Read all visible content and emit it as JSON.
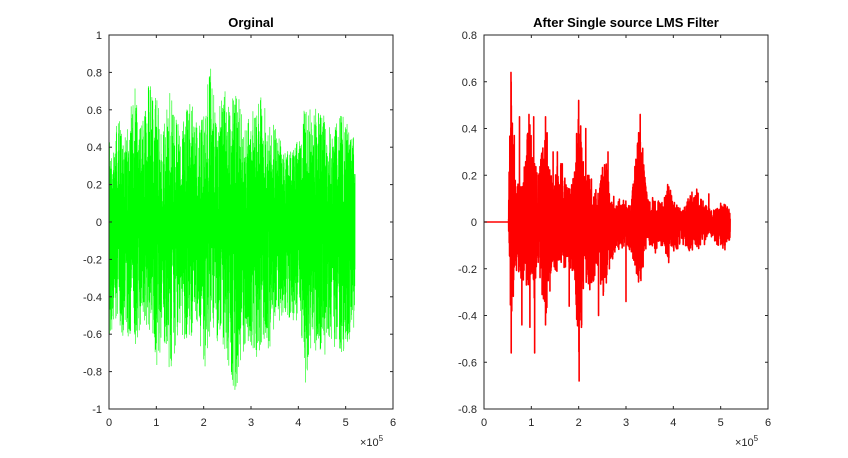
{
  "figure": {
    "background": "#ffffff"
  },
  "chart_data": [
    {
      "type": "line",
      "title": "Orginal",
      "xlabel": "",
      "ylabel": "",
      "xlim": [
        0,
        600000
      ],
      "ylim": [
        -1,
        1
      ],
      "x_ticks": [
        0,
        100000,
        200000,
        300000,
        400000,
        500000,
        600000
      ],
      "x_tick_labels": [
        "0",
        "1",
        "2",
        "3",
        "4",
        "5",
        "6"
      ],
      "x_exponent_label": "×10",
      "x_exponent_power": "5",
      "y_ticks": [
        -1,
        -0.8,
        -0.6,
        -0.4,
        -0.2,
        0,
        0.2,
        0.4,
        0.6,
        0.8,
        1
      ],
      "y_tick_labels": [
        "-1",
        "-0.8",
        "-0.6",
        "-0.4",
        "-0.2",
        "0",
        "0.2",
        "0.4",
        "0.6",
        "0.8",
        "1"
      ],
      "grid": false,
      "legend": "none",
      "series": [
        {
          "color": "#00ff00",
          "style": "dense oscillating audio signal",
          "x_range": [
            0,
            520000
          ],
          "envelope_positive": [
            [
              0,
              0.45
            ],
            [
              10000,
              0.4
            ],
            [
              20000,
              0.62
            ],
            [
              30000,
              0.42
            ],
            [
              45000,
              0.6
            ],
            [
              55000,
              0.72
            ],
            [
              70000,
              0.52
            ],
            [
              85000,
              0.75
            ],
            [
              100000,
              0.72
            ],
            [
              115000,
              0.5
            ],
            [
              130000,
              0.72
            ],
            [
              150000,
              0.5
            ],
            [
              170000,
              0.67
            ],
            [
              190000,
              0.55
            ],
            [
              205000,
              0.66
            ],
            [
              215000,
              0.88
            ],
            [
              230000,
              0.6
            ],
            [
              245000,
              0.7
            ],
            [
              260000,
              0.66
            ],
            [
              275000,
              0.7
            ],
            [
              290000,
              0.52
            ],
            [
              305000,
              0.62
            ],
            [
              320000,
              0.68
            ],
            [
              340000,
              0.54
            ],
            [
              355000,
              0.5
            ],
            [
              370000,
              0.36
            ],
            [
              385000,
              0.42
            ],
            [
              400000,
              0.44
            ],
            [
              415000,
              0.66
            ],
            [
              430000,
              0.62
            ],
            [
              445000,
              0.6
            ],
            [
              460000,
              0.55
            ],
            [
              475000,
              0.5
            ],
            [
              490000,
              0.58
            ],
            [
              505000,
              0.52
            ],
            [
              520000,
              0.5
            ]
          ],
          "envelope_negative": [
            [
              0,
              -0.62
            ],
            [
              10000,
              -0.55
            ],
            [
              20000,
              -0.48
            ],
            [
              30000,
              -0.72
            ],
            [
              45000,
              -0.62
            ],
            [
              55000,
              -0.66
            ],
            [
              70000,
              -0.55
            ],
            [
              85000,
              -0.6
            ],
            [
              100000,
              -0.78
            ],
            [
              115000,
              -0.62
            ],
            [
              130000,
              -0.82
            ],
            [
              150000,
              -0.56
            ],
            [
              170000,
              -0.78
            ],
            [
              190000,
              -0.62
            ],
            [
              205000,
              -0.8
            ],
            [
              215000,
              -0.56
            ],
            [
              230000,
              -0.65
            ],
            [
              245000,
              -0.72
            ],
            [
              260000,
              -0.93
            ],
            [
              275000,
              -0.86
            ],
            [
              290000,
              -0.66
            ],
            [
              305000,
              -0.74
            ],
            [
              320000,
              -0.7
            ],
            [
              340000,
              -0.68
            ],
            [
              355000,
              -0.56
            ],
            [
              370000,
              -0.48
            ],
            [
              385000,
              -0.54
            ],
            [
              400000,
              -0.52
            ],
            [
              415000,
              -0.86
            ],
            [
              430000,
              -0.62
            ],
            [
              445000,
              -0.82
            ],
            [
              460000,
              -0.7
            ],
            [
              475000,
              -0.66
            ],
            [
              490000,
              -0.74
            ],
            [
              505000,
              -0.65
            ],
            [
              520000,
              -0.55
            ]
          ]
        }
      ]
    },
    {
      "type": "line",
      "title": "After Single source LMS Filter",
      "xlabel": "",
      "ylabel": "",
      "xlim": [
        0,
        600000
      ],
      "ylim": [
        -0.8,
        0.8
      ],
      "x_ticks": [
        0,
        100000,
        200000,
        300000,
        400000,
        500000,
        600000
      ],
      "x_tick_labels": [
        "0",
        "1",
        "2",
        "3",
        "4",
        "5",
        "6"
      ],
      "x_exponent_label": "×10",
      "x_exponent_power": "5",
      "y_ticks": [
        -0.8,
        -0.6,
        -0.4,
        -0.2,
        0,
        0.2,
        0.4,
        0.6,
        0.8
      ],
      "y_tick_labels": [
        "-0.8",
        "-0.6",
        "-0.4",
        "-0.2",
        "0",
        "0.2",
        "0.4",
        "0.6",
        "0.8"
      ],
      "grid": false,
      "legend": "none",
      "series": [
        {
          "color": "#ff0000",
          "style": "filtered signal, flat zero until ~0.5e5 then bursts",
          "flat_until": 52000,
          "x_range": [
            52000,
            520000
          ],
          "envelope_positive": [
            [
              52000,
              0.12
            ],
            [
              57000,
              0.64
            ],
            [
              65000,
              0.18
            ],
            [
              80000,
              0.15
            ],
            [
              95000,
              0.46
            ],
            [
              105000,
              0.3
            ],
            [
              115000,
              0.2
            ],
            [
              130000,
              0.45
            ],
            [
              145000,
              0.15
            ],
            [
              160000,
              0.32
            ],
            [
              175000,
              0.15
            ],
            [
              190000,
              0.2
            ],
            [
              200000,
              0.52
            ],
            [
              212000,
              0.22
            ],
            [
              225000,
              0.2
            ],
            [
              240000,
              0.12
            ],
            [
              255000,
              0.3
            ],
            [
              265000,
              0.2
            ],
            [
              280000,
              0.1
            ],
            [
              295000,
              0.1
            ],
            [
              310000,
              0.08
            ],
            [
              330000,
              0.46
            ],
            [
              345000,
              0.1
            ],
            [
              360000,
              0.12
            ],
            [
              375000,
              0.08
            ],
            [
              390000,
              0.16
            ],
            [
              405000,
              0.08
            ],
            [
              420000,
              0.05
            ],
            [
              435000,
              0.12
            ],
            [
              450000,
              0.15
            ],
            [
              465000,
              0.08
            ],
            [
              480000,
              0.05
            ],
            [
              495000,
              0.06
            ],
            [
              510000,
              0.08
            ],
            [
              520000,
              0.05
            ]
          ],
          "envelope_negative": [
            [
              52000,
              -0.12
            ],
            [
              57000,
              -0.56
            ],
            [
              65000,
              -0.2
            ],
            [
              80000,
              -0.26
            ],
            [
              95000,
              -0.28
            ],
            [
              105000,
              -0.34
            ],
            [
              115000,
              -0.22
            ],
            [
              130000,
              -0.45
            ],
            [
              145000,
              -0.2
            ],
            [
              160000,
              -0.25
            ],
            [
              175000,
              -0.18
            ],
            [
              190000,
              -0.22
            ],
            [
              200000,
              -0.68
            ],
            [
              212000,
              -0.24
            ],
            [
              225000,
              -0.3
            ],
            [
              240000,
              -0.2
            ],
            [
              255000,
              -0.36
            ],
            [
              265000,
              -0.2
            ],
            [
              280000,
              -0.12
            ],
            [
              295000,
              -0.12
            ],
            [
              310000,
              -0.12
            ],
            [
              330000,
              -0.3
            ],
            [
              345000,
              -0.08
            ],
            [
              360000,
              -0.14
            ],
            [
              375000,
              -0.1
            ],
            [
              390000,
              -0.18
            ],
            [
              405000,
              -0.12
            ],
            [
              420000,
              -0.1
            ],
            [
              435000,
              -0.14
            ],
            [
              450000,
              -0.12
            ],
            [
              465000,
              -0.1
            ],
            [
              480000,
              -0.08
            ],
            [
              495000,
              -0.1
            ],
            [
              510000,
              -0.12
            ],
            [
              520000,
              -0.08
            ]
          ],
          "spikes": [
            [
              57000,
              0.64
            ],
            [
              57500,
              -0.56
            ],
            [
              64000,
              0.37
            ],
            [
              75000,
              0.45
            ],
            [
              80000,
              -0.44
            ],
            [
              95000,
              0.46
            ],
            [
              97000,
              -0.45
            ],
            [
              105000,
              0.45
            ],
            [
              107000,
              -0.56
            ],
            [
              130000,
              0.45
            ],
            [
              130000,
              -0.44
            ],
            [
              146000,
              0.3
            ],
            [
              155000,
              0.3
            ],
            [
              180000,
              -0.36
            ],
            [
              200000,
              0.52
            ],
            [
              201000,
              -0.68
            ],
            [
              215000,
              0.4
            ],
            [
              242000,
              -0.4
            ],
            [
              262000,
              0.3
            ],
            [
              300000,
              -0.34
            ],
            [
              330000,
              0.46
            ],
            [
              388000,
              0.16
            ],
            [
              475000,
              0.12
            ],
            [
              500000,
              0.08
            ]
          ]
        }
      ]
    }
  ]
}
